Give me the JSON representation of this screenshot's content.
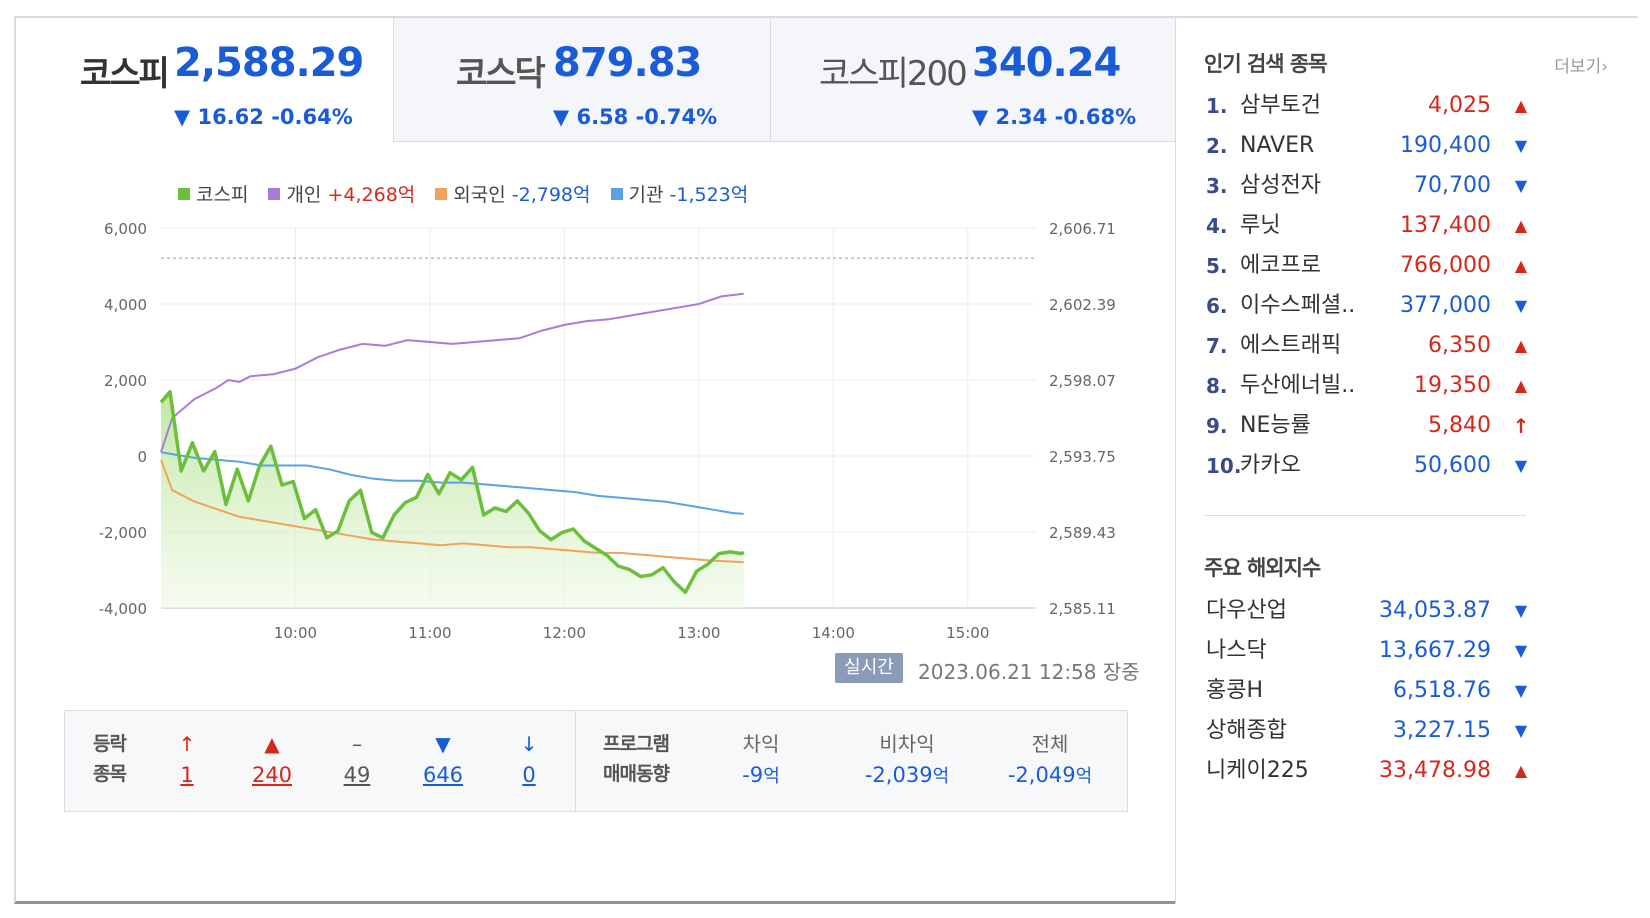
{
  "tabs": [
    {
      "name": "코스피",
      "value": "2,588.29",
      "change": "▼ 16.62 -0.64%",
      "active": true
    },
    {
      "name": "코스닥",
      "value": "879.83",
      "change": "▼ 6.58 -0.74%",
      "active": false
    },
    {
      "name": "코스피200",
      "value": "340.24",
      "change": "▼ 2.34 -0.68%",
      "active": false
    }
  ],
  "legend": {
    "kospi": "코스피",
    "individual_label": "개인",
    "individual_value": "+4,268억",
    "foreign_label": "외국인",
    "foreign_value": "-2,798억",
    "institution_label": "기관",
    "institution_value": "-1,523억"
  },
  "colors": {
    "kospi": "#6bbf3a",
    "individual": "#a97bdb",
    "foreign": "#f0a35a",
    "institution": "#5aa2e8",
    "up": "#d3291d",
    "down": "#1a5bd8"
  },
  "chart_data": {
    "type": "line",
    "x_ticks": [
      "10:00",
      "11:00",
      "12:00",
      "13:00",
      "14:00",
      "15:00"
    ],
    "y_left_ticks": [
      "6,000",
      "4,000",
      "2,000",
      "0",
      "-2,000",
      "-4,000"
    ],
    "y_right_ticks": [
      "2,606.71",
      "2,602.39",
      "2,598.07",
      "2,593.75",
      "2,589.43",
      "2,585.11"
    ],
    "ylim_left": [
      -4000,
      6000
    ],
    "ylim_right": [
      2585.11,
      2606.71
    ],
    "x_range_minutes": [
      540,
      930
    ],
    "previous_close": 2605.0,
    "series": [
      {
        "name": "코스피",
        "axis": "right",
        "area": true,
        "x": [
          540,
          544,
          549,
          554,
          559,
          564,
          569,
          574,
          579,
          584,
          589,
          594,
          599,
          604,
          609,
          614,
          619,
          624,
          629,
          634,
          639,
          644,
          649,
          654,
          659,
          664,
          669,
          674,
          679,
          684,
          689,
          694,
          699,
          704,
          709,
          714,
          719,
          724,
          729,
          734,
          739,
          744,
          749,
          754,
          759,
          764,
          769,
          774,
          779,
          784,
          789,
          794,
          799,
          800
        ],
        "y": [
          2596.8,
          2597.4,
          2592.9,
          2594.5,
          2592.9,
          2594.0,
          2591.0,
          2593.0,
          2591.2,
          2593.2,
          2594.3,
          2592.1,
          2592.3,
          2590.2,
          2590.7,
          2589.1,
          2589.5,
          2591.2,
          2591.8,
          2589.4,
          2589.1,
          2590.4,
          2591.1,
          2591.4,
          2592.7,
          2591.6,
          2592.8,
          2592.4,
          2593.1,
          2590.4,
          2590.8,
          2590.6,
          2591.2,
          2590.5,
          2589.5,
          2589.0,
          2589.4,
          2589.6,
          2588.9,
          2588.5,
          2588.1,
          2587.5,
          2587.3,
          2586.9,
          2587.0,
          2587.4,
          2586.6,
          2586.0,
          2587.2,
          2587.6,
          2588.2,
          2588.3,
          2588.2,
          2588.29
        ]
      },
      {
        "name": "개인",
        "axis": "left",
        "x": [
          540,
          545,
          555,
          565,
          570,
          575,
          580,
          590,
          600,
          610,
          620,
          630,
          640,
          650,
          660,
          670,
          680,
          690,
          700,
          710,
          720,
          730,
          740,
          750,
          760,
          770,
          780,
          790,
          800
        ],
        "y": [
          100,
          1000,
          1500,
          1800,
          2000,
          1950,
          2100,
          2150,
          2300,
          2600,
          2800,
          2950,
          2900,
          3050,
          3000,
          2950,
          3000,
          3050,
          3100,
          3300,
          3450,
          3550,
          3600,
          3700,
          3800,
          3900,
          4000,
          4200,
          4268
        ]
      },
      {
        "name": "외국인",
        "axis": "left",
        "x": [
          540,
          545,
          555,
          565,
          575,
          585,
          595,
          605,
          615,
          625,
          635,
          645,
          655,
          665,
          675,
          685,
          695,
          705,
          715,
          725,
          735,
          745,
          755,
          765,
          775,
          785,
          795,
          800
        ],
        "y": [
          -100,
          -900,
          -1200,
          -1400,
          -1600,
          -1700,
          -1800,
          -1900,
          -2000,
          -2100,
          -2200,
          -2250,
          -2300,
          -2350,
          -2300,
          -2350,
          -2400,
          -2400,
          -2450,
          -2500,
          -2550,
          -2550,
          -2600,
          -2650,
          -2700,
          -2750,
          -2780,
          -2798
        ]
      },
      {
        "name": "기관",
        "axis": "left",
        "x": [
          540,
          545,
          555,
          565,
          575,
          585,
          595,
          605,
          615,
          625,
          635,
          645,
          655,
          665,
          675,
          685,
          695,
          705,
          715,
          725,
          735,
          745,
          755,
          765,
          775,
          785,
          795,
          800
        ],
        "y": [
          100,
          50,
          -50,
          -100,
          -150,
          -250,
          -250,
          -250,
          -350,
          -500,
          -600,
          -650,
          -650,
          -700,
          -700,
          -750,
          -800,
          -850,
          -900,
          -950,
          -1050,
          -1100,
          -1150,
          -1200,
          -1300,
          -1400,
          -1500,
          -1523
        ]
      }
    ]
  },
  "realtime": {
    "badge": "실시간",
    "time": "2023.06.21 12:58 장중"
  },
  "summary": {
    "label_line1": "등락",
    "label_line2": "종목",
    "cols": [
      {
        "icon": "↑",
        "value": "1",
        "tone": "red",
        "icon_name": "upper-limit-icon"
      },
      {
        "icon": "▲",
        "value": "240",
        "tone": "red",
        "icon_name": "up-icon"
      },
      {
        "icon": "–",
        "value": "49",
        "tone": "gray",
        "icon_name": "unchanged-icon"
      },
      {
        "icon": "▼",
        "value": "646",
        "tone": "blue",
        "icon_name": "down-icon"
      },
      {
        "icon": "↓",
        "value": "0",
        "tone": "blue",
        "icon_name": "lower-limit-icon"
      }
    ],
    "program_label_line1": "프로그램",
    "program_label_line2": "매매동향",
    "program": [
      {
        "head": "차익",
        "value": "-9",
        "unit": "억"
      },
      {
        "head": "비차익",
        "value": "-2,039",
        "unit": "억"
      },
      {
        "head": "전체",
        "value": "-2,049",
        "unit": "억"
      }
    ]
  },
  "popular": {
    "title": "인기 검색 종목",
    "more": "더보기",
    "items": [
      {
        "rank": "1.",
        "name": "삼부토건",
        "price": "4,025",
        "dir": "up"
      },
      {
        "rank": "2.",
        "name": "NAVER",
        "price": "190,400",
        "dir": "down"
      },
      {
        "rank": "3.",
        "name": "삼성전자",
        "price": "70,700",
        "dir": "down"
      },
      {
        "rank": "4.",
        "name": "루닛",
        "price": "137,400",
        "dir": "up"
      },
      {
        "rank": "5.",
        "name": "에코프로",
        "price": "766,000",
        "dir": "up"
      },
      {
        "rank": "6.",
        "name": "이수스페셜..",
        "price": "377,000",
        "dir": "down"
      },
      {
        "rank": "7.",
        "name": "에스트래픽",
        "price": "6,350",
        "dir": "up"
      },
      {
        "rank": "8.",
        "name": "두산에너빌..",
        "price": "19,350",
        "dir": "up"
      },
      {
        "rank": "9.",
        "name": "NE능률",
        "price": "5,840",
        "dir": "limit_up"
      },
      {
        "rank": "10.",
        "name": "카카오",
        "price": "50,600",
        "dir": "down"
      }
    ]
  },
  "world": {
    "title": "주요 해외지수",
    "items": [
      {
        "name": "다우산업",
        "value": "34,053.87",
        "dir": "down"
      },
      {
        "name": "나스닥",
        "value": "13,667.29",
        "dir": "down"
      },
      {
        "name": "홍콩H",
        "value": "6,518.76",
        "dir": "down"
      },
      {
        "name": "상해종합",
        "value": "3,227.15",
        "dir": "down"
      },
      {
        "name": "니케이225",
        "value": "33,478.98",
        "dir": "up"
      }
    ]
  }
}
